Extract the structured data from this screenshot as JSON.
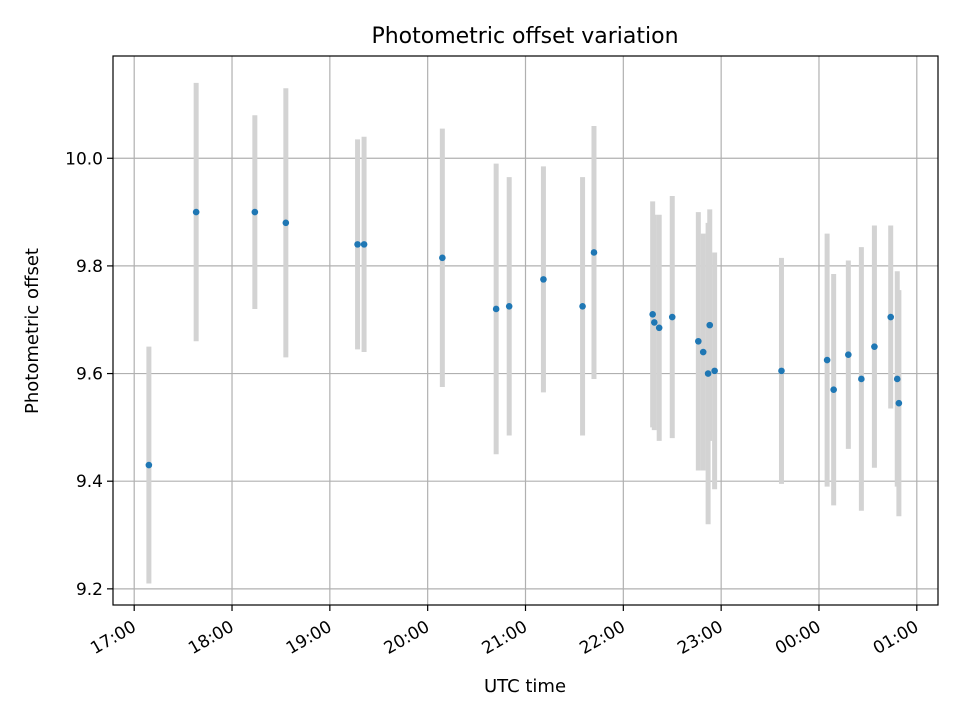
{
  "chart_data": {
    "type": "scatter",
    "title": "Photometric offset variation",
    "xlabel": "UTC time",
    "ylabel": "Photometric offset",
    "x_axis": {
      "kind": "time",
      "tick_labels": [
        "17:00",
        "18:00",
        "19:00",
        "20:00",
        "21:00",
        "22:00",
        "23:00",
        "00:00",
        "01:00"
      ],
      "tick_label_rotation": "30 degrees"
    },
    "y_axis": {
      "ylim": [
        9.17,
        10.19
      ],
      "tick_labels": [
        "9.2",
        "9.4",
        "9.6",
        "9.8",
        "10.0"
      ]
    },
    "grid": true,
    "colors": {
      "points": "#1f77b4",
      "error_bars": "#d3d3d3",
      "grid": "#b0b0b0"
    },
    "series": [
      {
        "marker": "point",
        "points": [
          {
            "time": "17:09",
            "y": 9.43,
            "err": 0.22
          },
          {
            "time": "17:38",
            "y": 9.9,
            "err": 0.24
          },
          {
            "time": "18:14",
            "y": 9.9,
            "err": 0.18
          },
          {
            "time": "18:33",
            "y": 9.88,
            "err": 0.25
          },
          {
            "time": "19:17",
            "y": 9.84,
            "err": 0.195
          },
          {
            "time": "19:21",
            "y": 9.84,
            "err": 0.2
          },
          {
            "time": "20:09",
            "y": 9.815,
            "err": 0.24
          },
          {
            "time": "20:42",
            "y": 9.72,
            "err": 0.27
          },
          {
            "time": "20:50",
            "y": 9.725,
            "err": 0.24
          },
          {
            "time": "21:11",
            "y": 9.775,
            "err": 0.21
          },
          {
            "time": "21:35",
            "y": 9.725,
            "err": 0.24
          },
          {
            "time": "21:42",
            "y": 9.825,
            "err": 0.235
          },
          {
            "time": "22:18",
            "y": 9.71,
            "err": 0.21
          },
          {
            "time": "22:19",
            "y": 9.695,
            "err": 0.2
          },
          {
            "time": "22:22",
            "y": 9.685,
            "err": 0.21
          },
          {
            "time": "22:30",
            "y": 9.705,
            "err": 0.225
          },
          {
            "time": "22:46",
            "y": 9.66,
            "err": 0.24
          },
          {
            "time": "22:49",
            "y": 9.64,
            "err": 0.22
          },
          {
            "time": "22:52",
            "y": 9.6,
            "err": 0.28
          },
          {
            "time": "22:53",
            "y": 9.69,
            "err": 0.215
          },
          {
            "time": "22:56",
            "y": 9.605,
            "err": 0.22
          },
          {
            "time": "23:37",
            "y": 9.605,
            "err": 0.21
          },
          {
            "time": "00:05",
            "y": 9.625,
            "err": 0.235
          },
          {
            "time": "00:09",
            "y": 9.57,
            "err": 0.215
          },
          {
            "time": "00:18",
            "y": 9.635,
            "err": 0.175
          },
          {
            "time": "00:26",
            "y": 9.59,
            "err": 0.245
          },
          {
            "time": "00:34",
            "y": 9.65,
            "err": 0.225
          },
          {
            "time": "00:44",
            "y": 9.705,
            "err": 0.17
          },
          {
            "time": "00:48",
            "y": 9.59,
            "err": 0.2
          },
          {
            "time": "00:49",
            "y": 9.545,
            "err": 0.21
          }
        ]
      }
    ]
  }
}
